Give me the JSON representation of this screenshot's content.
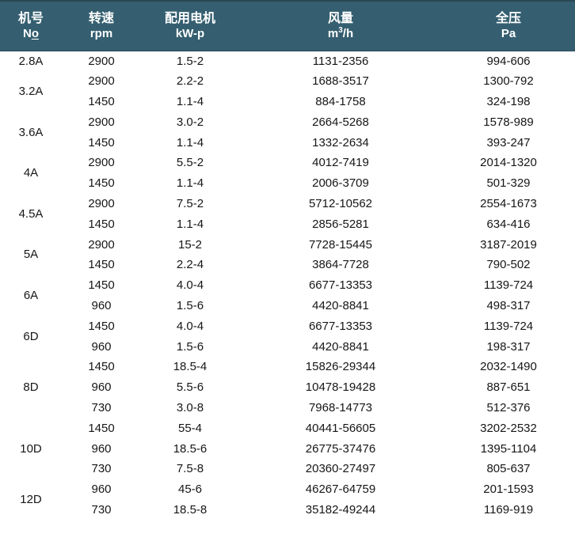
{
  "chart_data": {
    "type": "table",
    "title": "",
    "columns": [
      {
        "cn": "机号",
        "unit": "No",
        "unit_main": "N",
        "unit_underlined": "o"
      },
      {
        "cn": "转速",
        "unit": "rpm"
      },
      {
        "cn": "配用电机",
        "unit": "kW-p"
      },
      {
        "cn": "风量",
        "unit": "m3/h",
        "unit_base": "m",
        "unit_sup": "3",
        "unit_rest": "/h"
      },
      {
        "cn": "全压",
        "unit": "Pa"
      }
    ],
    "groups": [
      {
        "model": "2.8A",
        "rows": [
          [
            "2900",
            "1.5-2",
            "1131-2356",
            "994-606"
          ]
        ]
      },
      {
        "model": "3.2A",
        "rows": [
          [
            "2900",
            "2.2-2",
            "1688-3517",
            "1300-792"
          ],
          [
            "1450",
            "1.1-4",
            "884-1758",
            "324-198"
          ]
        ]
      },
      {
        "model": "3.6A",
        "rows": [
          [
            "2900",
            "3.0-2",
            "2664-5268",
            "1578-989"
          ],
          [
            "1450",
            "1.1-4",
            "1332-2634",
            "393-247"
          ]
        ]
      },
      {
        "model": "4A",
        "rows": [
          [
            "2900",
            "5.5-2",
            "4012-7419",
            "2014-1320"
          ],
          [
            "1450",
            "1.1-4",
            "2006-3709",
            "501-329"
          ]
        ]
      },
      {
        "model": "4.5A",
        "rows": [
          [
            "2900",
            "7.5-2",
            "5712-10562",
            "2554-1673"
          ],
          [
            "1450",
            "1.1-4",
            "2856-5281",
            "634-416"
          ]
        ]
      },
      {
        "model": "5A",
        "rows": [
          [
            "2900",
            "15-2",
            "7728-15445",
            "3187-2019"
          ],
          [
            "1450",
            "2.2-4",
            "3864-7728",
            "790-502"
          ]
        ]
      },
      {
        "model": "6A",
        "rows": [
          [
            "1450",
            "4.0-4",
            "6677-13353",
            "1139-724"
          ],
          [
            "960",
            "1.5-6",
            "4420-8841",
            "498-317"
          ]
        ]
      },
      {
        "model": "6D",
        "rows": [
          [
            "1450",
            "4.0-4",
            "6677-13353",
            "1139-724"
          ],
          [
            "960",
            "1.5-6",
            "4420-8841",
            "198-317"
          ]
        ]
      },
      {
        "model": "8D",
        "rows": [
          [
            "1450",
            "18.5-4",
            "15826-29344",
            "2032-1490"
          ],
          [
            "960",
            "5.5-6",
            "10478-19428",
            "887-651"
          ],
          [
            "730",
            "3.0-8",
            "7968-14773",
            "512-376"
          ]
        ]
      },
      {
        "model": "10D",
        "rows": [
          [
            "1450",
            "55-4",
            "40441-56605",
            "3202-2532"
          ],
          [
            "960",
            "18.5-6",
            "26775-37476",
            "1395-1104"
          ],
          [
            "730",
            "7.5-8",
            "20360-27497",
            "805-637"
          ]
        ]
      },
      {
        "model": "12D",
        "rows": [
          [
            "960",
            "45-6",
            "46267-64759",
            "201-1593"
          ],
          [
            "730",
            "18.5-8",
            "35182-49244",
            "1169-919"
          ]
        ]
      }
    ]
  },
  "colors": {
    "header_bg": "#355f70",
    "header_top_edge": "#2b4754",
    "header_text": "#ffffff",
    "body_text": "#161616",
    "page_bg": "#ffffff"
  }
}
